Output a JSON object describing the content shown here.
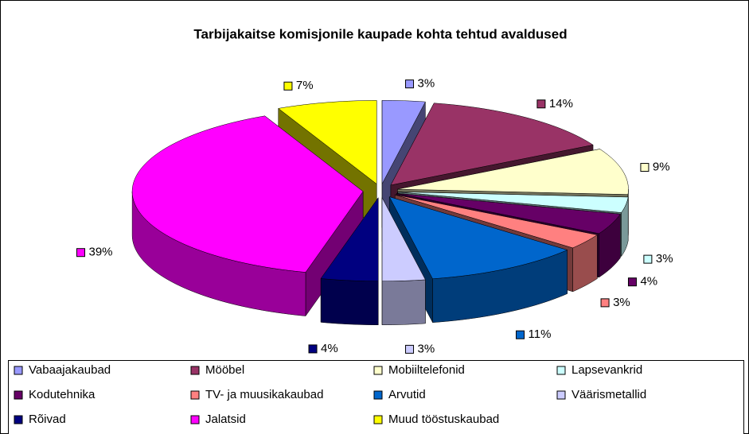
{
  "chart_data": {
    "type": "pie3d",
    "title": "Tarbijakaitse komisjonile kaupade kohta tehtud avaldused",
    "categories": [
      "Vabaajakaubad",
      "Mööbel",
      "Mobiiltelefonid",
      "Lapsevankrid",
      "Kodutehnika",
      "TV- ja muusikakaubad",
      "Arvutid",
      "Väärismetallid",
      "Rõivad",
      "Jalatsid",
      "Muud tööstuskaubad"
    ],
    "values": [
      3,
      14,
      9,
      3,
      4,
      3,
      11,
      3,
      4,
      39,
      7
    ],
    "value_labels": [
      "3%",
      "14%",
      "9%",
      "3%",
      "4%",
      "3%",
      "11%",
      "3%",
      "4%",
      "39%",
      "7%"
    ],
    "colors": [
      "#9999ff",
      "#993366",
      "#ffffcc",
      "#ccffff",
      "#660066",
      "#ff8080",
      "#0066cc",
      "#ccccff",
      "#000080",
      "#ff00ff",
      "#ffff00"
    ],
    "legend": "bottom"
  }
}
